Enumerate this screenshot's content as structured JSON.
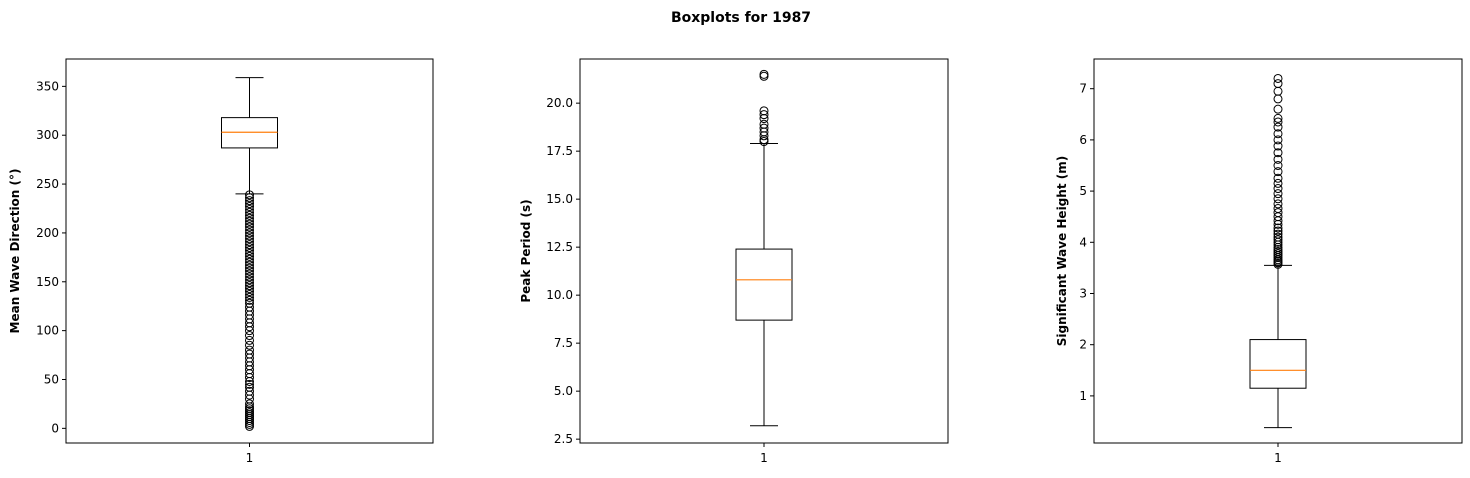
{
  "figure": {
    "title": "Boxplots for 1987"
  },
  "chart_data": [
    {
      "type": "boxplot",
      "ylabel": "Mean Wave Direction (°)",
      "xlabel": "",
      "categories": [
        "1"
      ],
      "ylim": [
        -15,
        378
      ],
      "yticks": [
        0,
        50,
        100,
        150,
        200,
        250,
        300,
        350
      ],
      "ytick_format": 0,
      "box": {
        "whisker_low": 240,
        "q1": 287,
        "median": 303,
        "q3": 318,
        "whisker_high": 359
      },
      "median_color": "#ff7f0e",
      "box_color": "#000000",
      "outliers": [
        2,
        4,
        6,
        8,
        10,
        12,
        14,
        16,
        18,
        20,
        22,
        25,
        30,
        34,
        38,
        42,
        45,
        48,
        52,
        56,
        60,
        64,
        68,
        72,
        76,
        80,
        85,
        90,
        95,
        100,
        104,
        108,
        112,
        116,
        120,
        124,
        128,
        131,
        134,
        137,
        140,
        143,
        146,
        149,
        152,
        155,
        158,
        161,
        164,
        167,
        170,
        173,
        176,
        179,
        182,
        185,
        188,
        191,
        194,
        197,
        200,
        203,
        206,
        209,
        212,
        215,
        218,
        221,
        224,
        227,
        230,
        233,
        236,
        239
      ]
    },
    {
      "type": "boxplot",
      "ylabel": "Peak Period (s)",
      "xlabel": "",
      "categories": [
        "1"
      ],
      "ylim": [
        2.3,
        22.3
      ],
      "yticks": [
        2.5,
        5.0,
        7.5,
        10.0,
        12.5,
        15.0,
        17.5,
        20.0
      ],
      "ytick_format": 1,
      "box": {
        "whisker_low": 3.2,
        "q1": 8.7,
        "median": 10.8,
        "q3": 12.4,
        "whisker_high": 17.9
      },
      "median_color": "#ff7f0e",
      "box_color": "#000000",
      "outliers": [
        18.0,
        18.1,
        18.3,
        18.5,
        18.7,
        18.9,
        19.2,
        19.4,
        19.6,
        21.4,
        21.5
      ]
    },
    {
      "type": "boxplot",
      "ylabel": "Significant Wave Height (m)",
      "xlabel": "",
      "categories": [
        "1"
      ],
      "ylim": [
        0.08,
        7.58
      ],
      "yticks": [
        1,
        2,
        3,
        4,
        5,
        6,
        7
      ],
      "ytick_format": 0,
      "box": {
        "whisker_low": 0.38,
        "q1": 1.15,
        "median": 1.5,
        "q3": 2.1,
        "whisker_high": 3.55
      },
      "median_color": "#ff7f0e",
      "box_color": "#000000",
      "outliers": [
        3.57,
        3.6,
        3.63,
        3.66,
        3.7,
        3.74,
        3.78,
        3.82,
        3.86,
        3.9,
        3.95,
        4.0,
        4.05,
        4.1,
        4.16,
        4.22,
        4.28,
        4.35,
        4.42,
        4.5,
        4.58,
        4.66,
        4.75,
        4.85,
        4.95,
        5.05,
        5.15,
        5.25,
        5.38,
        5.5,
        5.62,
        5.75,
        5.88,
        6.0,
        6.12,
        6.25,
        6.35,
        6.42,
        6.6,
        6.8,
        6.95,
        7.1,
        7.2
      ]
    }
  ]
}
